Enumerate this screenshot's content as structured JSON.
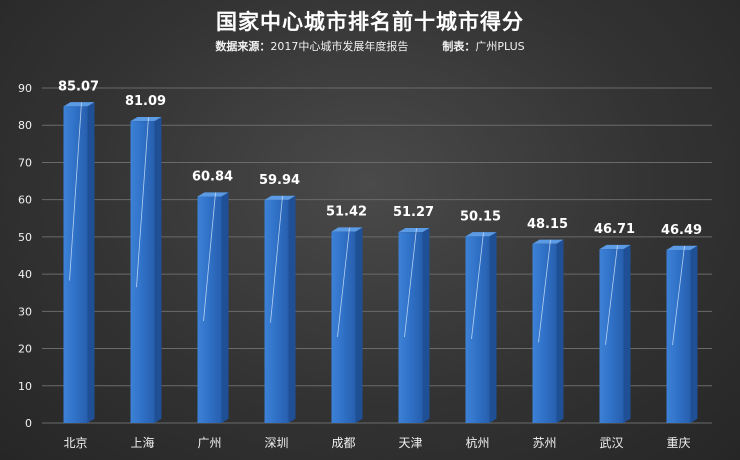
{
  "chart_data": {
    "type": "bar",
    "title": "国家中心城市排名前十城市得分",
    "subtitle": {
      "source_label": "数据来源：",
      "source_value": "2017中心城市发展年度报告",
      "maker_label": "制表：",
      "maker_value": "广州PLUS"
    },
    "categories": [
      "北京",
      "上海",
      "广州",
      "深圳",
      "成都",
      "天津",
      "杭州",
      "苏州",
      "武汉",
      "重庆"
    ],
    "values": [
      85.07,
      81.09,
      60.84,
      59.94,
      51.42,
      51.27,
      50.15,
      48.15,
      46.71,
      46.49
    ],
    "data_labels": [
      "85.07",
      "81.09",
      "60.84",
      "59.94",
      "51.42",
      "51.27",
      "50.15",
      "48.15",
      "46.71",
      "46.49"
    ],
    "yticks": [
      0,
      10,
      20,
      30,
      40,
      50,
      60,
      70,
      80,
      90
    ],
    "ylim": [
      0,
      90
    ],
    "xlabel": "",
    "ylabel": "",
    "grid": true,
    "legend": "none",
    "colors": {
      "bar_front": "#2e6fc4",
      "bar_side": "#1f4f95",
      "bar_top": "#5b9be6",
      "grid": "#6a6a6a"
    }
  }
}
